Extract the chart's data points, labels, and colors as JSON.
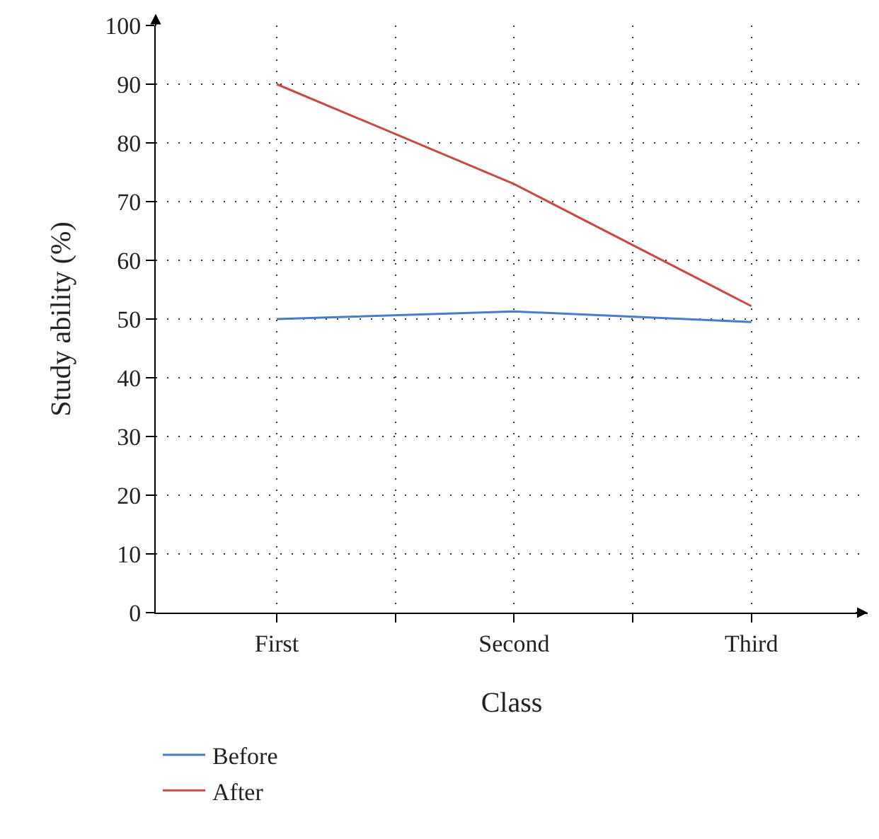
{
  "chart_data": {
    "type": "line",
    "xlabel": "Class",
    "ylabel": "Study ability (%)",
    "categories": [
      "First",
      "Second",
      "Third"
    ],
    "series": [
      {
        "name": "Before",
        "color": "#4a7cc9",
        "values": [
          50,
          51.3,
          49.5
        ]
      },
      {
        "name": "After",
        "color": "#c84a46",
        "values": [
          90,
          73,
          52.2
        ]
      }
    ],
    "ylim": [
      0,
      100
    ],
    "yticks": [
      0,
      10,
      20,
      30,
      40,
      50,
      60,
      70,
      80,
      90,
      100
    ],
    "grid": true,
    "legend": "bottom left",
    "marker": "none",
    "line_style": "solid"
  }
}
